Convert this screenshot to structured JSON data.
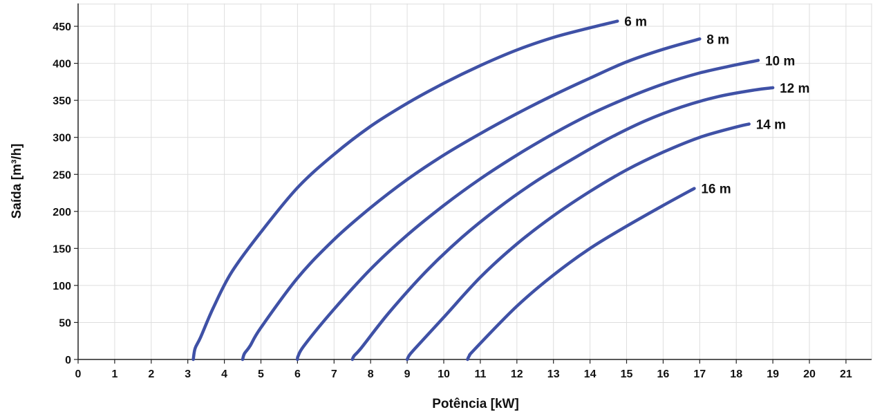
{
  "chart_data": {
    "type": "line",
    "xlabel": "Potência [kW]",
    "ylabel": "Saída [m³/h]",
    "xlim": [
      0,
      21.8
    ],
    "ylim": [
      0,
      480
    ],
    "x_ticks": [
      0,
      1,
      2,
      3,
      4,
      5,
      6,
      7,
      8,
      9,
      10,
      11,
      12,
      13,
      14,
      15,
      16,
      17,
      18,
      19,
      20,
      21
    ],
    "y_ticks": [
      0,
      50,
      100,
      150,
      200,
      250,
      300,
      350,
      400,
      450
    ],
    "grid": true,
    "line_color": "#3F51A6",
    "series": [
      {
        "name": "6 m",
        "x": [
          3.15,
          3.2,
          3.35,
          3.7,
          4.2,
          5.0,
          6.0,
          7.0,
          8.0,
          9.0,
          10.0,
          11.0,
          12.0,
          13.0,
          14.0,
          14.75
        ],
        "y": [
          0,
          15,
          30,
          70,
          118,
          172,
          232,
          277,
          315,
          346,
          373,
          397,
          418,
          435,
          448,
          457
        ]
      },
      {
        "name": "8 m",
        "x": [
          4.5,
          4.55,
          4.7,
          5.0,
          6.0,
          7.0,
          8.0,
          9.0,
          10.0,
          11.0,
          12.0,
          13.0,
          14.0,
          15.0,
          16.0,
          17.0
        ],
        "y": [
          0,
          8,
          18,
          43,
          110,
          162,
          205,
          243,
          276,
          305,
          332,
          357,
          380,
          402,
          419,
          433
        ]
      },
      {
        "name": "10 m",
        "x": [
          6.0,
          6.02,
          6.2,
          7.0,
          8.0,
          9.0,
          10.0,
          11.0,
          12.0,
          13.0,
          14.0,
          15.0,
          16.0,
          17.0,
          18.0,
          18.6
        ],
        "y": [
          0,
          5,
          20,
          68,
          122,
          168,
          208,
          244,
          276,
          305,
          331,
          353,
          372,
          387,
          398,
          404
        ]
      },
      {
        "name": "12 m",
        "x": [
          7.5,
          7.55,
          7.75,
          8.5,
          9.5,
          10.5,
          11.5,
          12.5,
          13.5,
          14.5,
          15.5,
          16.5,
          17.5,
          18.5,
          19.0
        ],
        "y": [
          0,
          5,
          16,
          63,
          118,
          165,
          205,
          240,
          270,
          298,
          322,
          341,
          355,
          364,
          367
        ]
      },
      {
        "name": "14 m",
        "x": [
          9.0,
          9.05,
          9.2,
          10.0,
          11.0,
          12.0,
          13.0,
          14.0,
          15.0,
          16.0,
          17.0,
          18.0,
          18.35
        ],
        "y": [
          0,
          5,
          14,
          57,
          111,
          156,
          194,
          227,
          256,
          280,
          300,
          314,
          318
        ]
      },
      {
        "name": "16 m",
        "x": [
          10.65,
          10.7,
          10.85,
          12.0,
          13.0,
          14.0,
          15.0,
          16.0,
          16.85
        ],
        "y": [
          0,
          5,
          14,
          72,
          114,
          150,
          180,
          208,
          231
        ]
      }
    ]
  }
}
